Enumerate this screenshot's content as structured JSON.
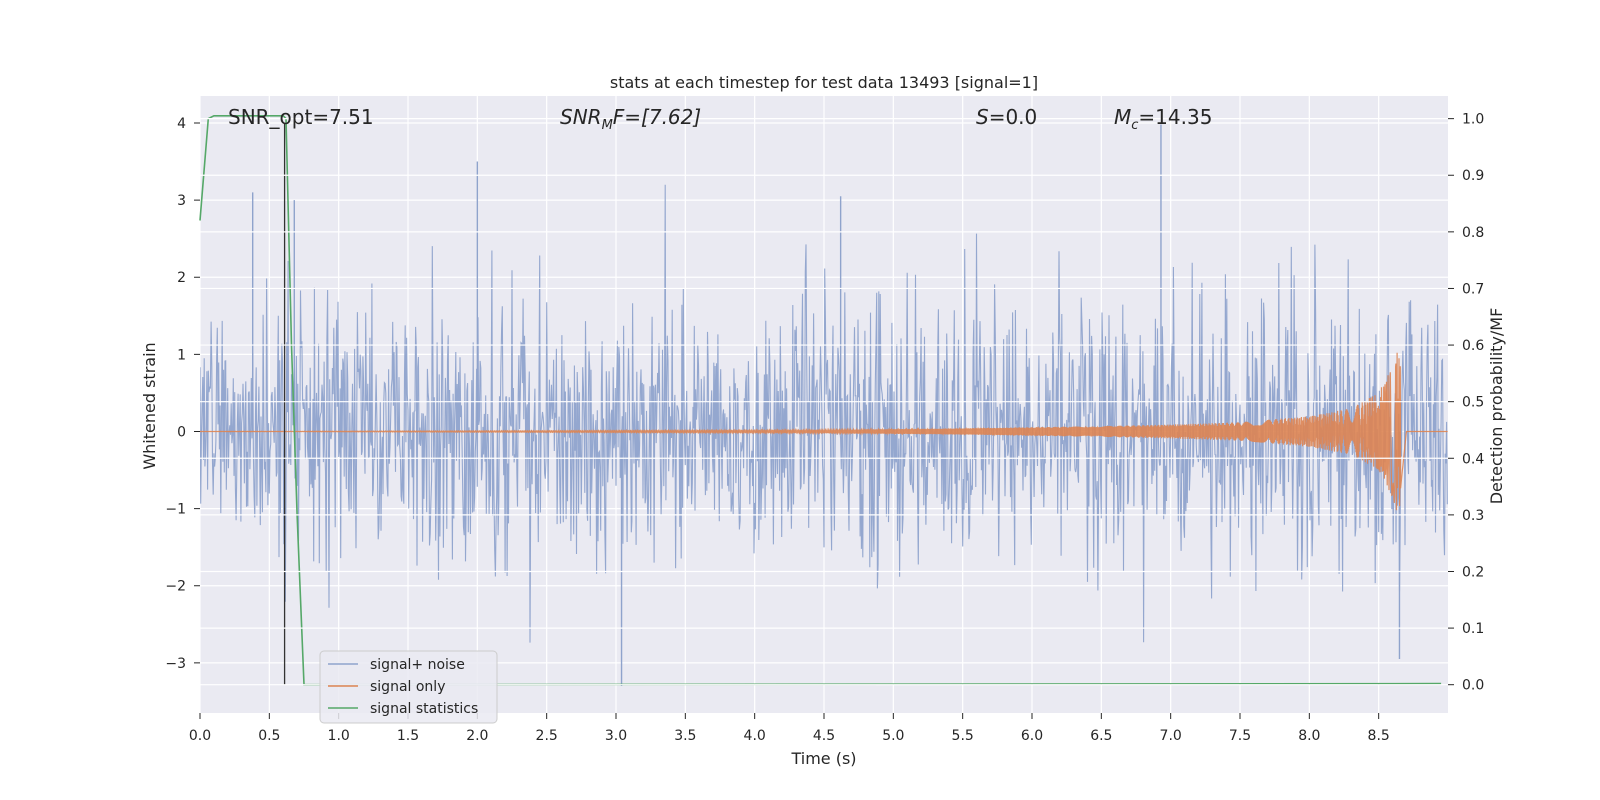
{
  "chart_data": {
    "type": "line",
    "title": "stats at each timestep for test data 13493 [signal=1]",
    "xlabel": "Time (s)",
    "ylabel": "Whitened strain",
    "ylabel_right": "Detection probability/MF",
    "xlim": [
      0.0,
      9.0
    ],
    "ylim": [
      -3.65,
      4.35
    ],
    "ylim_right": [
      -0.05,
      1.04
    ],
    "x_ticks": [
      "0.0",
      "0.5",
      "1.0",
      "1.5",
      "2.0",
      "2.5",
      "3.0",
      "3.5",
      "4.0",
      "4.5",
      "5.0",
      "5.5",
      "6.0",
      "6.5",
      "7.0",
      "7.5",
      "8.0",
      "8.5"
    ],
    "y_ticks": [
      "−3",
      "−2",
      "−1",
      "0",
      "1",
      "2",
      "3",
      "4"
    ],
    "y_ticks_right": [
      "0.0",
      "0.1",
      "0.2",
      "0.3",
      "0.4",
      "0.5",
      "0.6",
      "0.7",
      "0.8",
      "0.9",
      "1.0"
    ],
    "grid": true,
    "legend_position": "lower-left",
    "annotations": {
      "snr_opt": "SNR_opt=7.51",
      "snr_mf_main": "SNR",
      "snr_mf_sub": "M",
      "snr_mf_rest": "F=[7.62]",
      "s_main": "S",
      "s_rest": "=0.0",
      "mc_main": "M",
      "mc_sub": "c",
      "mc_rest": "=14.35"
    },
    "vertical_marker_x": 0.61,
    "series": [
      {
        "name": "signal+ noise",
        "color": "#8fa3cc",
        "axis": "left",
        "description_values": "noisy whitened strain, amplitude mostly within ±1.8, peaks near 4.0 at t≈6.93 and −3.3 at t≈3.04"
      },
      {
        "name": "signal only",
        "color": "#dd8452",
        "axis": "left",
        "x": [
          0.0,
          4.5,
          5.5,
          6.5,
          7.0,
          7.5,
          8.0,
          8.3,
          8.5,
          8.6,
          8.65,
          8.7,
          9.0
        ],
        "envelope": [
          0.0,
          0.02,
          0.04,
          0.07,
          0.09,
          0.12,
          0.2,
          0.3,
          0.5,
          0.85,
          1.15,
          0.0,
          0.0
        ]
      },
      {
        "name": "signal statistics",
        "color": "#55a868",
        "axis": "right",
        "x": [
          0.0,
          0.06,
          0.1,
          0.6,
          0.62,
          0.66,
          0.7,
          0.75,
          1.0,
          8.95
        ],
        "values": [
          0.82,
          1.0,
          1.005,
          1.005,
          1.0,
          0.6,
          0.3,
          0.0,
          0.0,
          0.002
        ]
      }
    ]
  }
}
